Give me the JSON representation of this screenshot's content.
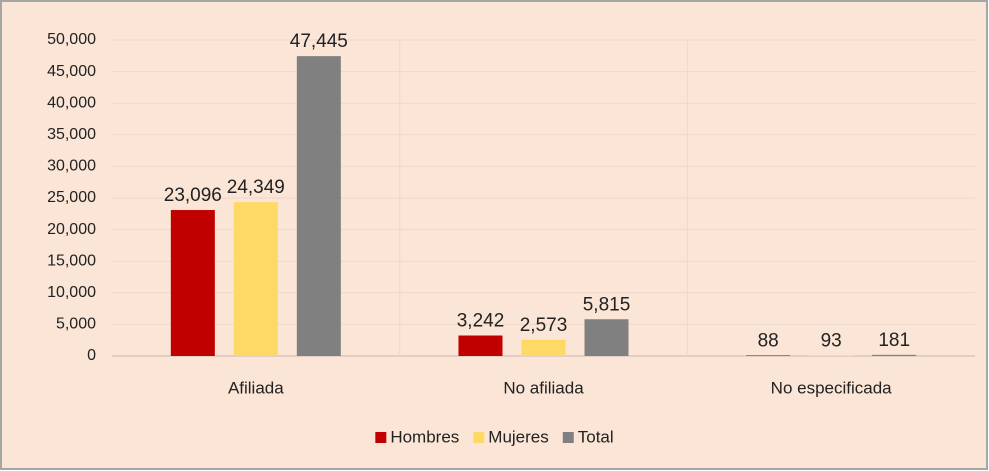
{
  "chart_data": {
    "type": "bar",
    "categories": [
      "Afiliada",
      "No afiliada",
      "No especificada"
    ],
    "series": [
      {
        "name": "Hombres",
        "color": "#c00000",
        "values": [
          23096,
          3242,
          88
        ],
        "value_labels": [
          "23,096",
          "3,242",
          "88"
        ]
      },
      {
        "name": "Mujeres",
        "color": "#ffd966",
        "values": [
          24349,
          2573,
          93
        ],
        "value_labels": [
          "24,349",
          "2,573",
          "93"
        ]
      },
      {
        "name": "Total",
        "color": "#808080",
        "values": [
          47445,
          5815,
          181
        ],
        "value_labels": [
          "47,445",
          "5,815",
          "181"
        ]
      }
    ],
    "ylim": [
      0,
      50000
    ],
    "yticks": [
      0,
      {
        "value": 5000,
        "label": "5,000"
      },
      {
        "value": 10000,
        "label": "10,000"
      },
      {
        "value": 15000,
        "label": "15,000"
      },
      {
        "value": 20000,
        "label": "20,000"
      },
      {
        "value": 25000,
        "label": "25,000"
      },
      {
        "value": 30000,
        "label": "30,000"
      },
      {
        "value": 35000,
        "label": "35,000"
      },
      {
        "value": 40000,
        "label": "40,000"
      },
      {
        "value": 45000,
        "label": "45,000"
      },
      {
        "value": 50000,
        "label": "50,000"
      }
    ],
    "grid": true,
    "legend": "bottom"
  }
}
